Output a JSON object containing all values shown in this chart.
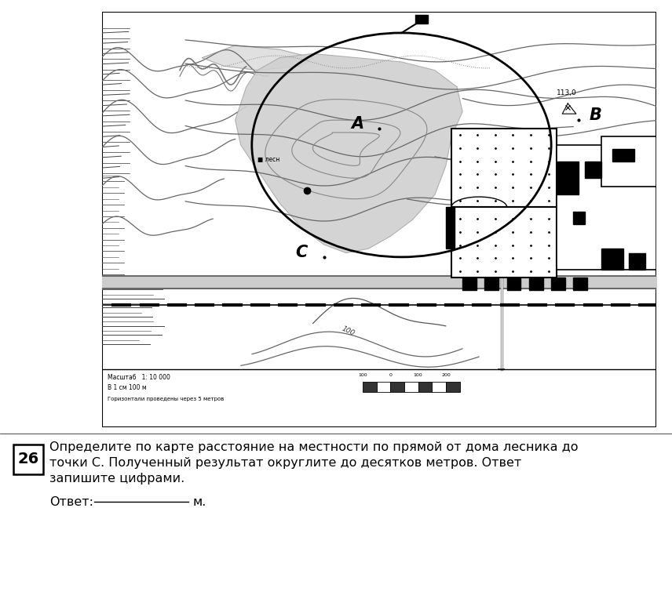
{
  "bg_color": "#ffffff",
  "question_number": "26",
  "question_text": "Определите по карте расстояние на местности по прямой от дома лесника до",
  "question_text2": "точки C. Полученный результат округлите до десятков метров. Ответ",
  "question_text3": "запишите цифрами.",
  "answer_label": "Ответ:",
  "answer_unit": "м.",
  "scale_text1": "Масштаб   1: 10 000",
  "scale_text2": "В 1 см 100 м",
  "scale_text3": "Горизонтали проведены через 5 метров",
  "label_A": "A",
  "label_B": "B",
  "label_C": "C",
  "elev_113": "113,0",
  "contour_100": "100"
}
